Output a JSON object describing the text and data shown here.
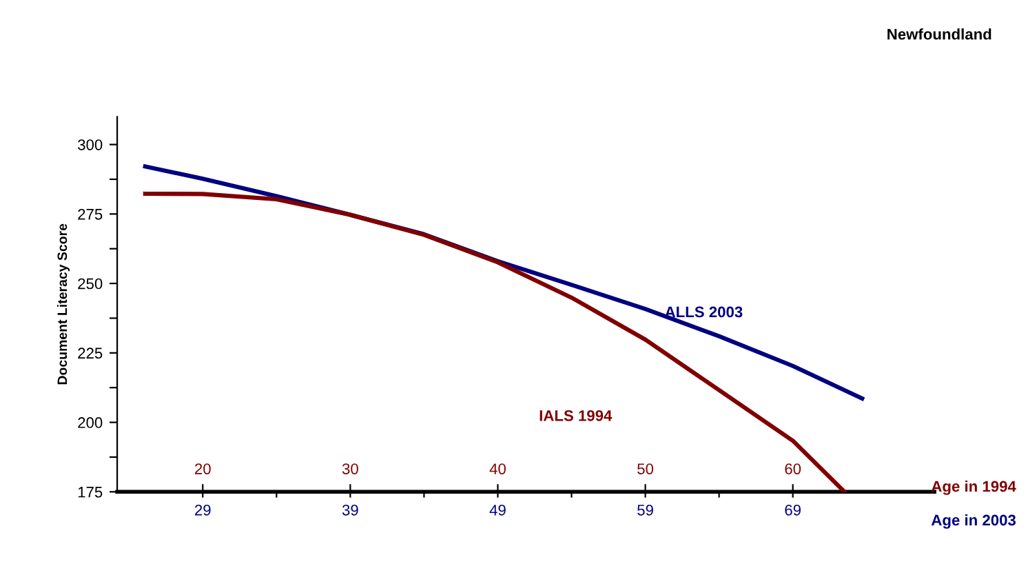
{
  "chart_data": {
    "type": "line",
    "title": "Newfoundland",
    "ylabel": "Document Literacy Score",
    "xlabel": "Age in 2003",
    "x2label": "Age in 1994",
    "xlim": [
      23.2,
      78.6
    ],
    "xticks": [
      29,
      {
        "value": 34,
        "label": null
      },
      39,
      {
        "value": 44,
        "label": null
      },
      49,
      {
        "value": 54,
        "label": null
      },
      59,
      {
        "value": 64,
        "label": null
      },
      69
    ],
    "x2lim": [
      14.2,
      69.6
    ],
    "x2ticks": [
      20,
      30,
      40,
      50,
      60
    ],
    "ylim": [
      175,
      310
    ],
    "yticks": [
      175,
      {
        "value": 187.5,
        "label": null
      },
      200,
      {
        "value": 212.5,
        "label": null
      },
      225,
      {
        "value": 237.5,
        "label": null
      },
      250,
      {
        "value": 262.5,
        "label": null
      },
      275,
      {
        "value": 287.5,
        "label": null
      },
      300
    ],
    "grid": false,
    "marker": "none",
    "line_style": "solid",
    "series": [
      {
        "name": "ALLS 2003",
        "color": "#000080",
        "x": [
          25.1,
          29,
          34,
          39,
          44,
          49,
          54,
          59,
          64,
          69,
          73.7
        ],
        "values": [
          292.1,
          287.7,
          281.4,
          274.7,
          267.7,
          258,
          249.5,
          240.8,
          231,
          220.3,
          208.6
        ]
      },
      {
        "name": "IALS 1994",
        "color": "#800000",
        "axis": "x2",
        "x": [
          16.1,
          20,
          25,
          30,
          35,
          40,
          45,
          50,
          55,
          60,
          63.5
        ],
        "values": [
          282.3,
          282.2,
          280.3,
          274.7,
          267.5,
          257.6,
          244.9,
          229.8,
          211.6,
          193.4,
          175
        ]
      }
    ]
  }
}
